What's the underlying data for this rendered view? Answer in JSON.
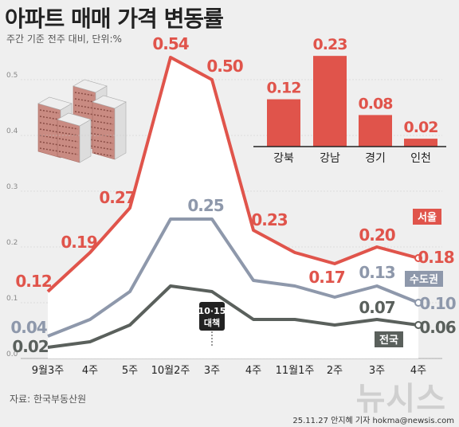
{
  "header": {
    "title": "아파트 매매 가격 변동률",
    "subtitle": "주간 기준 전주 대비, 단위:%"
  },
  "footer": {
    "source": "자료: 한국부동산원",
    "credit": "25.11.27 안지혜 기자 hokma@newsis.com",
    "watermark": "뉴시스"
  },
  "annotation": {
    "policy_label_line1": "10·15",
    "policy_label_line2": "대책"
  },
  "colors": {
    "seoul": "#e0544b",
    "capital": "#8e98ab",
    "national": "#5a605c",
    "bar": "#e0544b",
    "fill": "#ffffff",
    "grid": "#cccccc"
  },
  "chart_data": [
    {
      "type": "line",
      "categories": [
        "9월3주",
        "4주",
        "5주",
        "10월2주",
        "3주",
        "4주",
        "11월1주",
        "2주",
        "3주",
        "4주"
      ],
      "ylim": [
        0,
        0.6
      ],
      "yticks": [
        "0.0",
        "0.1",
        "0.2",
        "0.3",
        "0.4",
        "0.5"
      ],
      "grid": true,
      "series": [
        {
          "name": "서울",
          "values": [
            0.12,
            0.19,
            0.27,
            0.54,
            0.5,
            0.23,
            0.19,
            0.17,
            0.2,
            0.18
          ],
          "labels": [
            "0.12",
            "0.19",
            "0.27",
            "0.54",
            "0.50",
            "0.23",
            "",
            "0.17",
            "0.20",
            "0.18"
          ]
        },
        {
          "name": "수도권",
          "values": [
            0.04,
            0.07,
            0.12,
            0.25,
            0.25,
            0.14,
            0.13,
            0.11,
            0.13,
            0.1
          ],
          "labels": [
            "0.04",
            "",
            "",
            "",
            "0.25",
            "",
            "",
            "",
            "0.13",
            "0.10"
          ]
        },
        {
          "name": "전국",
          "values": [
            0.02,
            0.03,
            0.06,
            0.13,
            0.12,
            0.07,
            0.07,
            0.06,
            0.07,
            0.06
          ],
          "labels": [
            "0.02",
            "",
            "",
            "",
            "",
            "",
            "",
            "",
            "0.07",
            "0.06"
          ]
        }
      ]
    },
    {
      "type": "bar",
      "categories": [
        "강북",
        "강남",
        "경기",
        "인천"
      ],
      "values": [
        0.12,
        0.23,
        0.08,
        0.02
      ],
      "labels": [
        "0.12",
        "0.23",
        "0.08",
        "0.02"
      ]
    }
  ]
}
